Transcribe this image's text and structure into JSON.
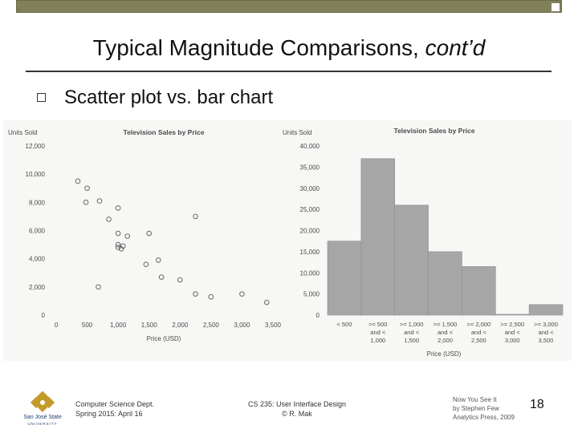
{
  "slide": {
    "title": "Typical Magnitude Comparisons, ",
    "title_italic": "cont’d",
    "bullet": "Scatter plot vs. bar chart",
    "page_number": "18"
  },
  "footer": {
    "course_line1": "Computer Science Dept.",
    "course_line2": "Spring 2015: April 16",
    "center_line1": "CS 235: User Interface Design",
    "center_line2": "© R. Mak",
    "source_line1": "Now You See It",
    "source_line2": "by Stephen Few",
    "source_line3": "Analytics Press, 2009",
    "logo_text1": "San José State",
    "logo_text2": "UNIVERSITY"
  },
  "colors": {
    "accent": "#7f7f5a",
    "bar_fill": "#a6a6a6",
    "point_stroke": "#666666"
  },
  "chart_data": [
    {
      "type": "scatter",
      "title": "Television Sales by Price",
      "xlabel": "Price (USD)",
      "ylabel": "Units Sold",
      "xlim": [
        0,
        3500
      ],
      "ylim": [
        0,
        12000
      ],
      "x_ticks": [
        "0",
        "500",
        "1,000",
        "1,500",
        "2,000",
        "2,500",
        "3,000",
        "3,500"
      ],
      "y_ticks": [
        "0",
        "2,000",
        "4,000",
        "6,000",
        "8,000",
        "10,000",
        "12,000"
      ],
      "points": [
        {
          "x": 350,
          "y": 9500
        },
        {
          "x": 500,
          "y": 9000
        },
        {
          "x": 480,
          "y": 8000
        },
        {
          "x": 700,
          "y": 8100
        },
        {
          "x": 1000,
          "y": 7600
        },
        {
          "x": 850,
          "y": 6800
        },
        {
          "x": 1150,
          "y": 5600
        },
        {
          "x": 1000,
          "y": 5800
        },
        {
          "x": 1000,
          "y": 5000
        },
        {
          "x": 1050,
          "y": 4700
        },
        {
          "x": 1080,
          "y": 4900
        },
        {
          "x": 1000,
          "y": 4800
        },
        {
          "x": 1500,
          "y": 5800
        },
        {
          "x": 1450,
          "y": 3600
        },
        {
          "x": 1650,
          "y": 3900
        },
        {
          "x": 1700,
          "y": 2700
        },
        {
          "x": 680,
          "y": 2000
        },
        {
          "x": 2000,
          "y": 2500
        },
        {
          "x": 2250,
          "y": 7000
        },
        {
          "x": 2250,
          "y": 1500
        },
        {
          "x": 2500,
          "y": 1300
        },
        {
          "x": 3000,
          "y": 1500
        },
        {
          "x": 3400,
          "y": 900
        }
      ]
    },
    {
      "type": "bar",
      "title": "Television Sales by Price",
      "xlabel": "Price (USD)",
      "ylabel": "Units Sold",
      "ylim": [
        0,
        40000
      ],
      "y_ticks": [
        "0",
        "5,000",
        "10,000",
        "15,000",
        "20,000",
        "25,000",
        "30,000",
        "35,000",
        "40,000"
      ],
      "categories": [
        [
          "< 500"
        ],
        [
          ">= 500",
          "and <",
          "1,000"
        ],
        [
          ">= 1,000",
          "and <",
          "1,500"
        ],
        [
          ">= 1,500",
          "and <",
          "2,000"
        ],
        [
          ">= 2,000",
          "and <",
          "2,500"
        ],
        [
          ">= 2,500",
          "and <",
          "3,000"
        ],
        [
          ">= 3,000",
          "and <",
          "3,500"
        ]
      ],
      "values": [
        17500,
        37000,
        26000,
        15000,
        11500,
        200,
        2500
      ]
    }
  ]
}
